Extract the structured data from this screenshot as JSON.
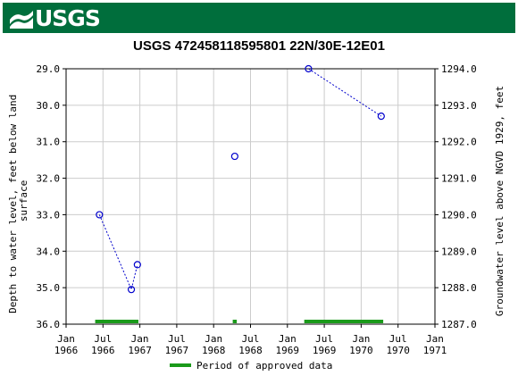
{
  "header": {
    "logo_text": "USGS",
    "logo_color": "#006e3c"
  },
  "chart_data": {
    "type": "scatter",
    "title": "USGS 472458118595801 22N/30E-12E01",
    "ylabel_left": "Depth to water level, feet below land surface",
    "ylabel_right": "Groundwater level above NGVD 1929, feet",
    "ylim_left": [
      36.0,
      29.0
    ],
    "ylim_right": [
      1287.0,
      1294.0
    ],
    "left_ticks": [
      "29.0",
      "30.0",
      "31.0",
      "32.0",
      "33.0",
      "34.0",
      "35.0",
      "36.0"
    ],
    "right_ticks": [
      "1294.0",
      "1293.0",
      "1292.0",
      "1291.0",
      "1290.0",
      "1289.0",
      "1288.0",
      "1287.0"
    ],
    "x_ticks": [
      {
        "month": "Jan",
        "year": "1966"
      },
      {
        "month": "Jul",
        "year": "1966"
      },
      {
        "month": "Jan",
        "year": "1967"
      },
      {
        "month": "Jul",
        "year": "1967"
      },
      {
        "month": "Jan",
        "year": "1968"
      },
      {
        "month": "Jul",
        "year": "1968"
      },
      {
        "month": "Jan",
        "year": "1969"
      },
      {
        "month": "Jul",
        "year": "1969"
      },
      {
        "month": "Jan",
        "year": "1970"
      },
      {
        "month": "Jul",
        "year": "1970"
      },
      {
        "month": "Jan",
        "year": "1971"
      }
    ],
    "xlim": [
      "1966-01-01",
      "1971-01-01"
    ],
    "series": [
      {
        "color": "#0000cc",
        "points": [
          {
            "date": "1966-06-15",
            "value": 33.0
          },
          {
            "date": "1966-11-20",
            "value": 35.05
          },
          {
            "date": "1966-12-20",
            "value": 34.37
          },
          {
            "date": "1968-04-15",
            "value": 31.4
          },
          {
            "date": "1969-04-15",
            "value": 29.0
          },
          {
            "date": "1970-04-10",
            "value": 30.3
          }
        ],
        "segments": [
          [
            0,
            1,
            2
          ],
          [
            4,
            5
          ]
        ]
      }
    ],
    "approved_periods": [
      {
        "start": "1966-05-25",
        "end": "1966-12-25"
      },
      {
        "start": "1968-04-05",
        "end": "1968-04-25"
      },
      {
        "start": "1969-03-25",
        "end": "1970-04-20"
      }
    ],
    "approved_color": "#1a9a1a",
    "legend": {
      "label": "Period of approved data",
      "placement": "bottom"
    },
    "grid": true
  }
}
